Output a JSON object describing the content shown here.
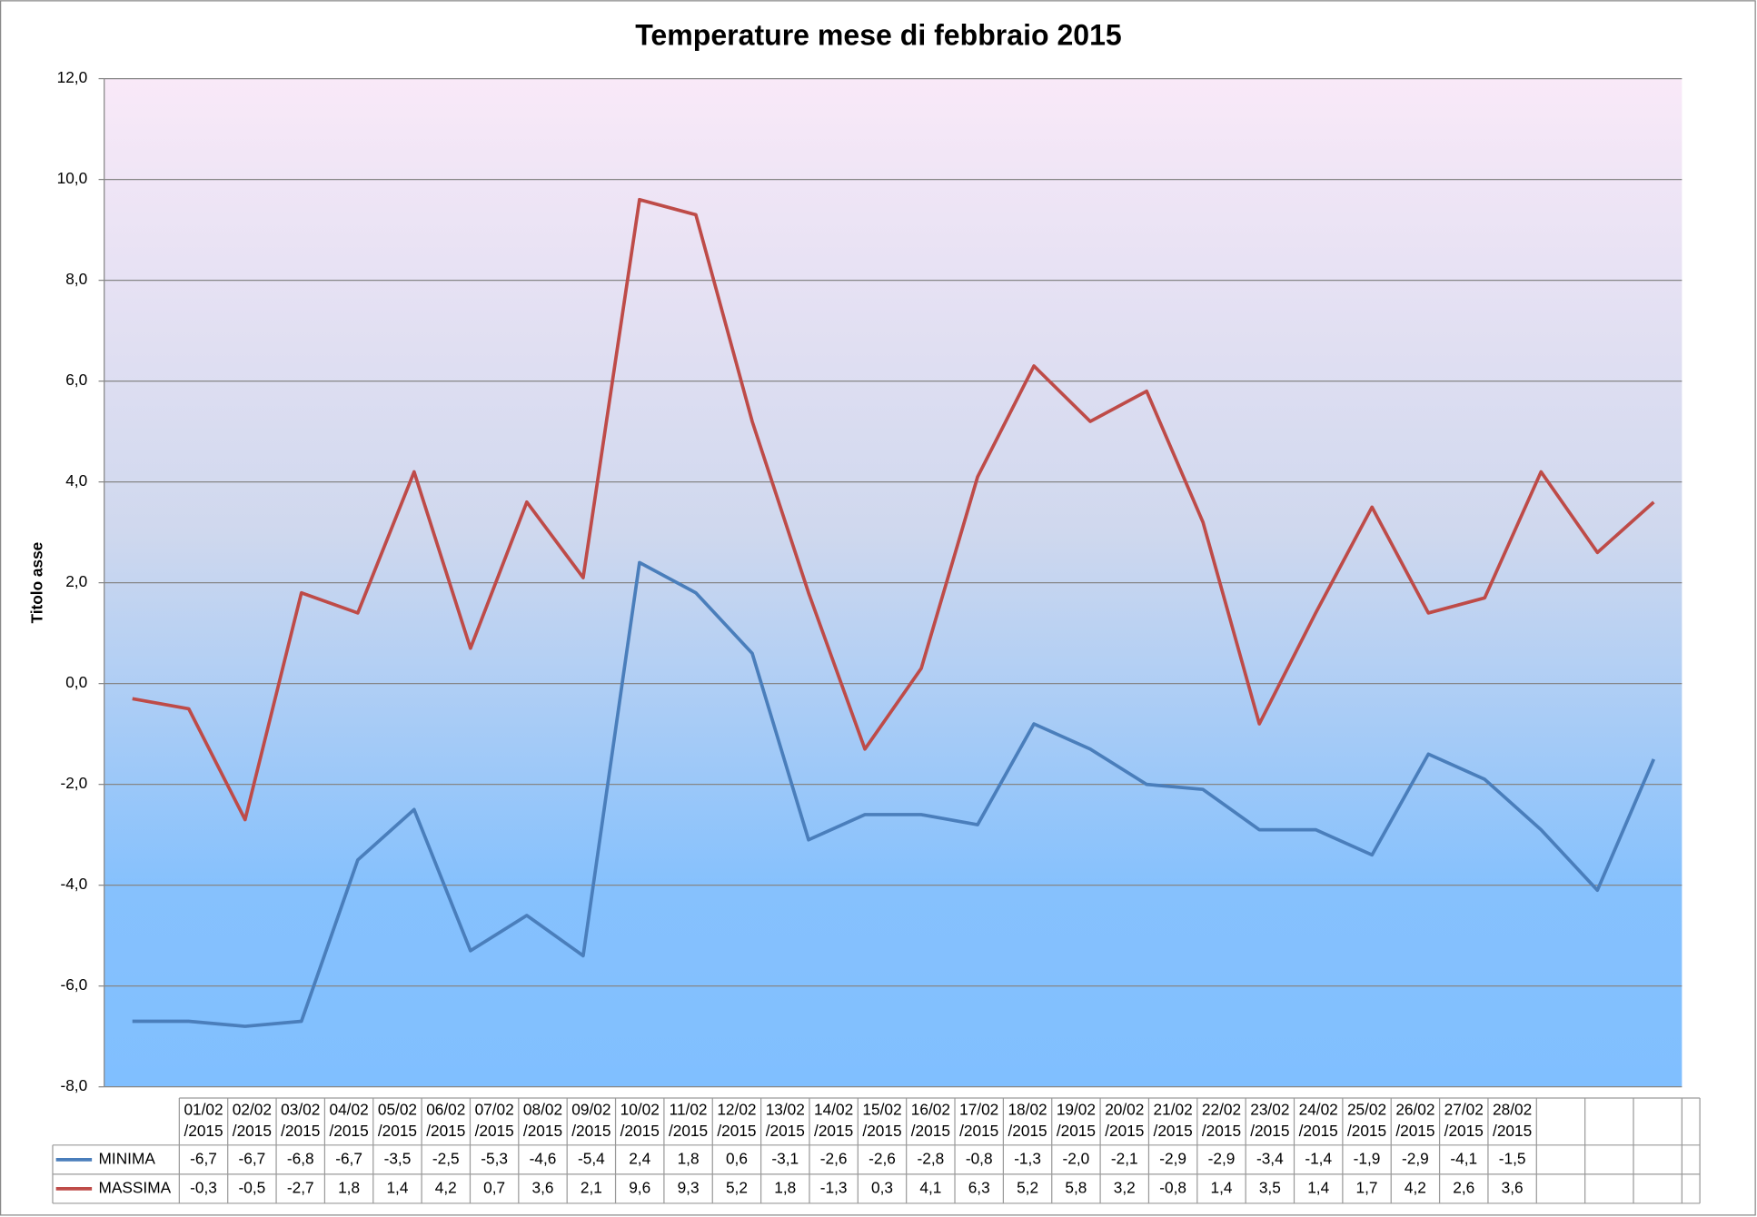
{
  "chart_data": {
    "type": "line",
    "title": "Temperature mese di febbraio 2015",
    "y_label": "Titolo asse",
    "categories": [
      "01/02/2015",
      "02/02/2015",
      "03/02/2015",
      "04/02/2015",
      "05/02/2015",
      "06/02/2015",
      "07/02/2015",
      "08/02/2015",
      "09/02/2015",
      "10/02/2015",
      "11/02/2015",
      "12/02/2015",
      "13/02/2015",
      "14/02/2015",
      "15/02/2015",
      "16/02/2015",
      "17/02/2015",
      "18/02/2015",
      "19/02/2015",
      "20/02/2015",
      "21/02/2015",
      "22/02/2015",
      "23/02/2015",
      "24/02/2015",
      "25/02/2015",
      "26/02/2015",
      "27/02/2015",
      "28/02/2015"
    ],
    "series": [
      {
        "name": "MINIMA",
        "color": "#4a7ebb",
        "values": [
          -6.7,
          -6.7,
          -6.8,
          -6.7,
          -3.5,
          -2.5,
          -5.3,
          -4.6,
          -5.4,
          2.4,
          1.8,
          0.6,
          -3.1,
          -2.6,
          -2.6,
          -2.8,
          -0.8,
          -1.3,
          -2.0,
          -2.1,
          -2.9,
          -2.9,
          -3.4,
          -1.4,
          -1.9,
          -2.9,
          -4.1,
          -1.5
        ],
        "value_labels": [
          "-6,7",
          "-6,7",
          "-6,8",
          "-6,7",
          "-3,5",
          "-2,5",
          "-5,3",
          "-4,6",
          "-5,4",
          "2,4",
          "1,8",
          "0,6",
          "-3,1",
          "-2,6",
          "-2,6",
          "-2,8",
          "-0,8",
          "-1,3",
          "-2,0",
          "-2,1",
          "-2,9",
          "-2,9",
          "-3,4",
          "-1,4",
          "-1,9",
          "-2,9",
          "-4,1",
          "-1,5"
        ]
      },
      {
        "name": "MASSIMA",
        "color": "#be4b48",
        "values": [
          -0.3,
          -0.5,
          -2.7,
          1.8,
          1.4,
          4.2,
          0.7,
          3.6,
          2.1,
          9.6,
          9.3,
          5.2,
          1.8,
          -1.3,
          0.3,
          4.1,
          6.3,
          5.2,
          5.8,
          3.2,
          -0.8,
          1.4,
          3.5,
          1.4,
          1.7,
          4.2,
          2.6,
          3.6
        ],
        "value_labels": [
          "-0,3",
          "-0,5",
          "-2,7",
          "1,8",
          "1,4",
          "4,2",
          "0,7",
          "3,6",
          "2,1",
          "9,6",
          "9,3",
          "5,2",
          "1,8",
          "-1,3",
          "0,3",
          "4,1",
          "6,3",
          "5,2",
          "5,8",
          "3,2",
          "-0,8",
          "1,4",
          "3,5",
          "1,4",
          "1,7",
          "4,2",
          "2,6",
          "3,6"
        ]
      }
    ],
    "ylim": [
      -8,
      12
    ],
    "yticks": [
      {
        "value": -8,
        "label": "-8,0"
      },
      {
        "value": -6,
        "label": "-6,0"
      },
      {
        "value": -4,
        "label": "-4,0"
      },
      {
        "value": -2,
        "label": "-2,0"
      },
      {
        "value": 0,
        "label": "0,0"
      },
      {
        "value": 2,
        "label": "2,0"
      },
      {
        "value": 4,
        "label": "4,0"
      },
      {
        "value": 6,
        "label": "6,0"
      },
      {
        "value": 8,
        "label": "8,0"
      },
      {
        "value": 10,
        "label": "10,0"
      },
      {
        "value": 12,
        "label": "12,0"
      }
    ],
    "grid": true
  }
}
